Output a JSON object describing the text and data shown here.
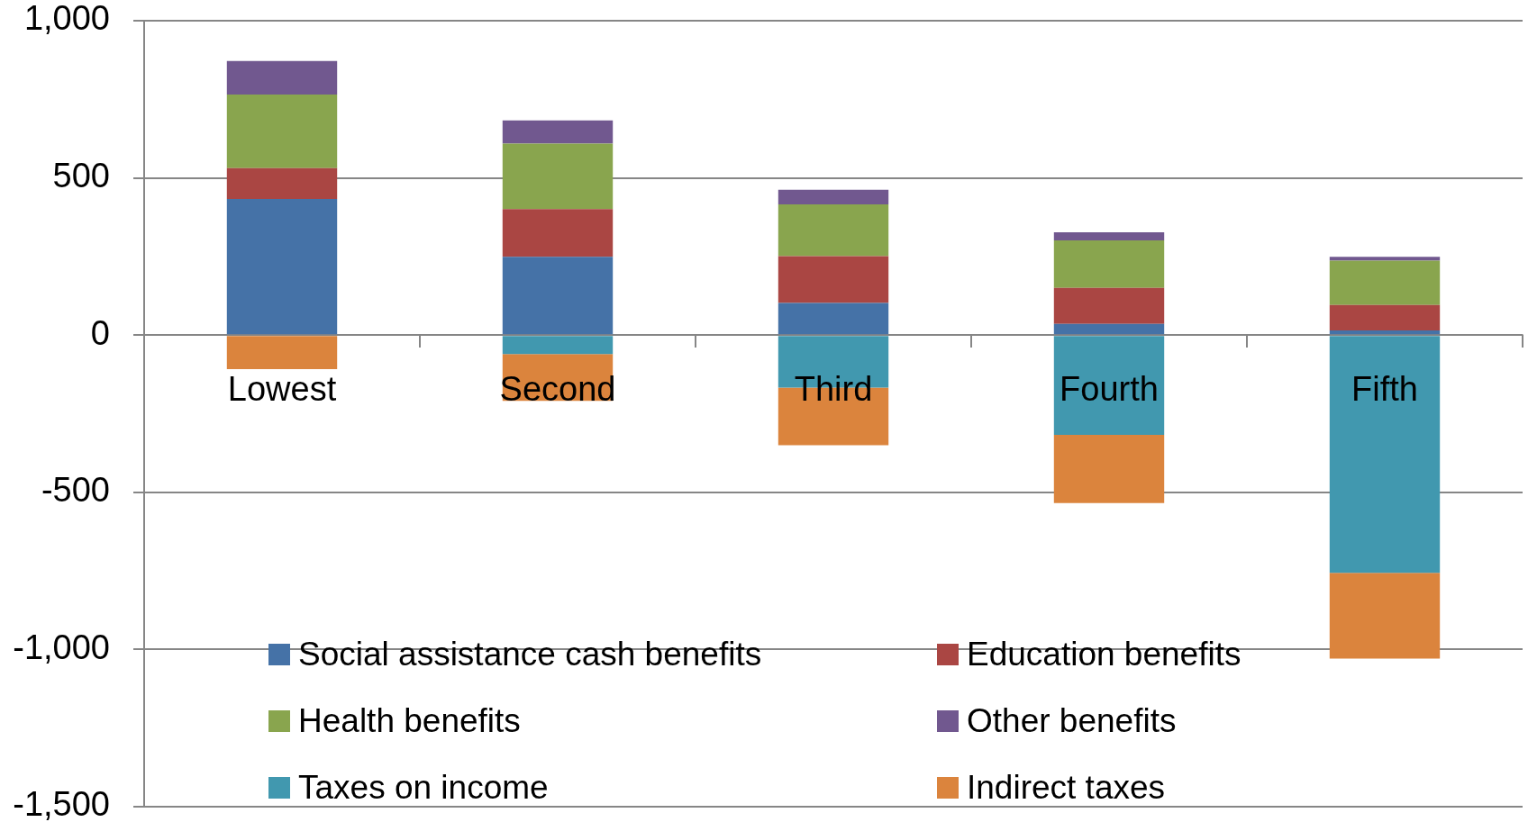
{
  "chart_data": {
    "type": "bar",
    "stacked": true,
    "categories": [
      "Lowest",
      "Second",
      "Third",
      "Fourth",
      "Fifth"
    ],
    "series": [
      {
        "name": "Social assistance cash benefits",
        "color": "#4572a7",
        "values": [
          433,
          249,
          102,
          36,
          15
        ]
      },
      {
        "name": "Education benefits",
        "color": "#aa4643",
        "values": [
          98,
          152,
          149,
          114,
          81
        ]
      },
      {
        "name": "Health benefits",
        "color": "#89a54e",
        "values": [
          234,
          208,
          165,
          151,
          141
        ]
      },
      {
        "name": "Other benefits",
        "color": "#71588f",
        "values": [
          107,
          74,
          46,
          26,
          12
        ]
      },
      {
        "name": "Taxes on income",
        "color": "#4198af",
        "values": [
          null,
          -60,
          -167,
          -317,
          -756
        ]
      },
      {
        "name": "Indirect taxes",
        "color": "#db843d",
        "values": [
          -108,
          -149,
          -183,
          -217,
          -273
        ]
      }
    ],
    "ylim": [
      -1500,
      1000
    ],
    "yticks": [
      {
        "value": -1500,
        "label": "-1,500"
      },
      {
        "value": -1000,
        "label": "-1,000"
      },
      -500,
      0,
      500,
      {
        "value": 1000,
        "label": "1,000"
      }
    ],
    "grid": "y",
    "legend": "bottom"
  }
}
